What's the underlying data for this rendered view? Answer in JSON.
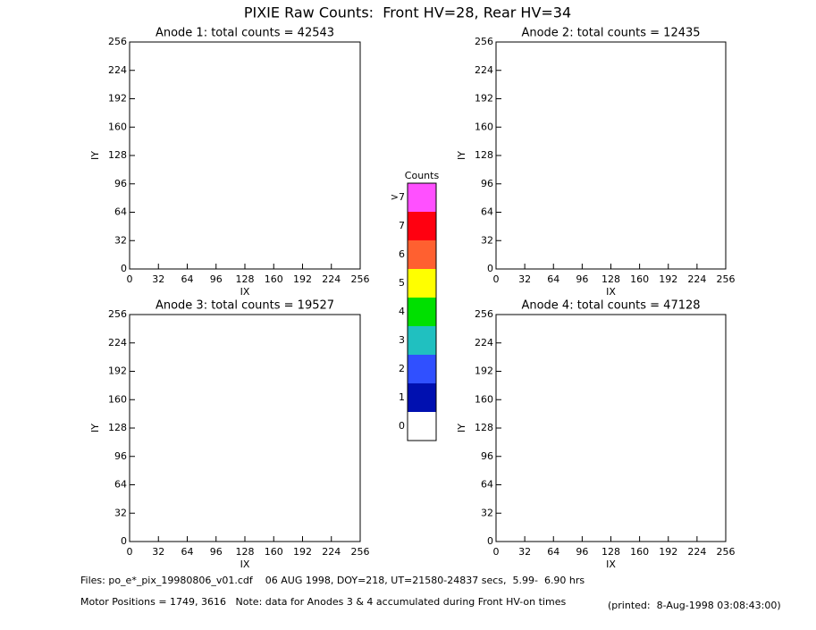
{
  "title": "PIXIE Raw Counts:  Front HV=28, Rear HV=34",
  "chart_data": [
    {
      "type": "heatmap",
      "title": "Anode 1: total counts = 42543",
      "xlabel": "IX",
      "ylabel": "IY",
      "xlim": [
        0,
        256
      ],
      "ylim": [
        0,
        256
      ],
      "xticks": [
        0,
        32,
        64,
        96,
        128,
        160,
        192,
        224,
        256
      ],
      "yticks": [
        0,
        32,
        64,
        96,
        128,
        160,
        192,
        224,
        256
      ]
    },
    {
      "type": "heatmap",
      "title": "Anode 2: total counts = 12435",
      "xlabel": "IX",
      "ylabel": "IY",
      "xlim": [
        0,
        256
      ],
      "ylim": [
        0,
        256
      ],
      "xticks": [
        0,
        32,
        64,
        96,
        128,
        160,
        192,
        224,
        256
      ],
      "yticks": [
        0,
        32,
        64,
        96,
        128,
        160,
        192,
        224,
        256
      ]
    },
    {
      "type": "heatmap",
      "title": "Anode 3: total counts = 19527",
      "xlabel": "IX",
      "ylabel": "IY",
      "xlim": [
        0,
        256
      ],
      "ylim": [
        0,
        256
      ],
      "xticks": [
        0,
        32,
        64,
        96,
        128,
        160,
        192,
        224,
        256
      ],
      "yticks": [
        0,
        32,
        64,
        96,
        128,
        160,
        192,
        224,
        256
      ]
    },
    {
      "type": "heatmap",
      "title": "Anode 4: total counts = 47128",
      "xlabel": "IX",
      "ylabel": "IY",
      "xlim": [
        0,
        256
      ],
      "ylim": [
        0,
        256
      ],
      "xticks": [
        0,
        32,
        64,
        96,
        128,
        160,
        192,
        224,
        256
      ],
      "yticks": [
        0,
        32,
        64,
        96,
        128,
        160,
        192,
        224,
        256
      ]
    }
  ],
  "colorbar": {
    "title": "Counts",
    "ticks": [
      0,
      1,
      2,
      3,
      4,
      5,
      6,
      7,
      {
        "value": 8,
        "label": ">7"
      }
    ],
    "colors": [
      "#ffffff",
      "#0010b0",
      "#3050ff",
      "#20c0c0",
      "#00e000",
      "#ffff00",
      "#ff6030",
      "#ff0010",
      "#ff50ff"
    ]
  },
  "footer": {
    "files": "Files: po_e*_pix_19980806_v01.cdf    06 AUG 1998, DOY=218, UT=21580-24837 secs,  5.99-  6.90 hrs",
    "motor": "Motor Positions = 1749, 3616   Note: data for Anodes 3 & 4 accumulated during Front HV-on times",
    "printed": "(printed:  8-Aug-1998 03:08:43:00)"
  }
}
